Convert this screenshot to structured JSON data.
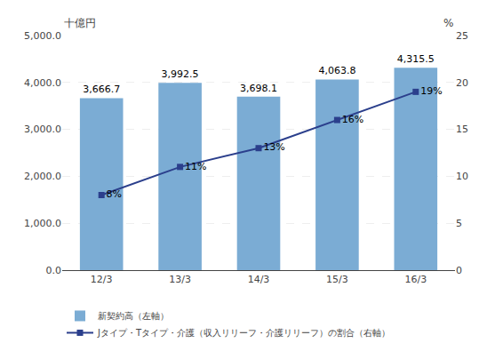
{
  "chart_data": {
    "type": "bar",
    "categories": [
      "12/3",
      "13/3",
      "14/3",
      "15/3",
      "16/3"
    ],
    "series": [
      {
        "name": "新契約高（左軸）",
        "type": "bar",
        "color": "#7bacd4",
        "values": [
          3666.7,
          3992.5,
          3698.1,
          4063.8,
          4315.5
        ],
        "value_labels": [
          "3,666.7",
          "3,992.5",
          "3,698.1",
          "4,063.8",
          "4,315.5"
        ]
      },
      {
        "name": "Jタイプ・Tタイプ・介護（収入リリーフ・介護リリーフ）の割合（右軸）",
        "type": "line",
        "axis": "y2",
        "color": "#2b3f8c",
        "marker": "square",
        "values": [
          8,
          11,
          13,
          16,
          19
        ],
        "value_labels": [
          "8%",
          "11%",
          "13%",
          "16%",
          "19%"
        ]
      }
    ],
    "ylabel": "十億円",
    "y2label": "%",
    "ylim": [
      0,
      5000
    ],
    "yticks": [
      {
        "value": 0,
        "label": "0.0"
      },
      {
        "value": 1000,
        "label": "1,000.0"
      },
      {
        "value": 2000,
        "label": "2,000.0"
      },
      {
        "value": 3000,
        "label": "3,000.0"
      },
      {
        "value": 4000,
        "label": "4,000.0"
      },
      {
        "value": 5000,
        "label": "5,000.0"
      }
    ],
    "y2lim": [
      0,
      25
    ],
    "y2ticks": [
      0,
      5,
      10,
      15,
      20,
      25
    ],
    "grid": true,
    "data_labels": true,
    "legend": "bottom left"
  }
}
